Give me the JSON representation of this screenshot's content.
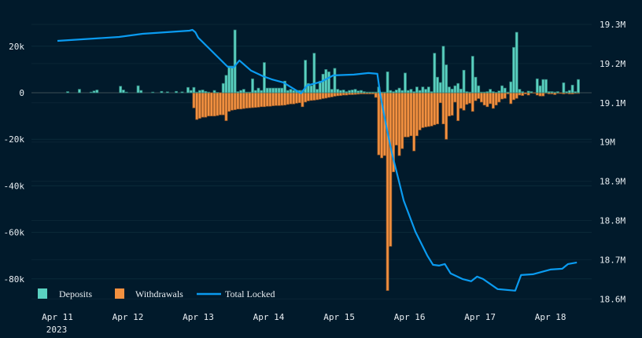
{
  "chart_data": {
    "type": "bar+line",
    "title": "",
    "x_ticks": [
      "Apr 11",
      "Apr 12",
      "Apr 13",
      "Apr 14",
      "Apr 15",
      "Apr 16",
      "Apr 17",
      "Apr 18"
    ],
    "x_year_label": "2023",
    "x_range": [
      "2023-04-11 00:00",
      "2023-04-18 09:00"
    ],
    "bar_interval": "1h",
    "y_left": {
      "ticks": [
        "20k",
        "0",
        "-20k",
        "-40k",
        "-60k",
        "-80k"
      ],
      "tick_values": [
        20000,
        0,
        -20000,
        -40000,
        -60000,
        -80000
      ],
      "range": [
        -88000,
        32000
      ]
    },
    "y_right": {
      "ticks": [
        "19.3M",
        "19.2M",
        "19.1M",
        "19M",
        "18.9M",
        "18.8M",
        "18.7M",
        "18.6M"
      ],
      "tick_values": [
        19.3,
        19.2,
        19.1,
        19.0,
        18.9,
        18.8,
        18.7,
        18.6
      ],
      "unit": "M",
      "range": [
        18.6,
        19.3
      ]
    },
    "grid": true,
    "legend_position": "bottom-left",
    "colors": {
      "deposits": "#5ad1c1",
      "withdrawals": "#f39140",
      "total_locked": "#0a9bf0",
      "background": "#011a2b"
    },
    "series": [
      {
        "name": "Deposits",
        "type": "bar",
        "unit": "k",
        "hourly_by_day": {
          "Apr 11": [
            0,
            0,
            0,
            0.5,
            0,
            0,
            0,
            1.5,
            0,
            0,
            0,
            0.3,
            0.8,
            1.2,
            0,
            0,
            0,
            0,
            0,
            0,
            0,
            2.8,
            1.2,
            0.3
          ],
          "Apr 12": [
            0,
            0,
            0,
            3,
            1,
            0,
            0,
            0,
            0.3,
            0,
            0,
            0.6,
            0,
            0.4,
            0,
            0,
            0.6,
            0,
            0.4,
            0,
            2.3,
            1,
            2.3,
            0.3
          ],
          "Apr 13": [
            1,
            1.2,
            0.6,
            0.3,
            0,
            1,
            0.2,
            0,
            4,
            7.5,
            11.5,
            11.5,
            27,
            0.5,
            1,
            1.5,
            0.3,
            0.3,
            6,
            1,
            2,
            1,
            13,
            2
          ],
          "Apr 14": [
            2,
            2,
            2,
            2,
            2,
            5,
            1,
            1.5,
            1,
            1,
            1,
            1,
            14,
            4,
            3,
            17,
            1.5,
            5,
            8,
            10,
            9,
            1.5,
            10.5,
            1.5
          ],
          "Apr 15": [
            1,
            1.2,
            0.5,
            1,
            1.2,
            1.5,
            0.8,
            1,
            0.5,
            0.3,
            0.3,
            0.3,
            0.3,
            2.5,
            0.3,
            0.3,
            9,
            1,
            0.5,
            1.2,
            2,
            1,
            8.5,
            1
          ],
          "Apr 16": [
            1.5,
            0.5,
            2.5,
            1,
            2.5,
            1.5,
            2.5,
            0.5,
            17,
            6.7,
            4.4,
            20,
            12,
            2.5,
            1.6,
            3,
            4,
            1.6,
            9.7,
            0.5,
            0.3,
            15.7,
            6.7,
            3
          ],
          "Apr 17": [
            0.3,
            0.3,
            0.5,
            1.5,
            0.5,
            0.2,
            0.8,
            3,
            2,
            0.3,
            4.7,
            19.5,
            26,
            1.5,
            0.5,
            0,
            0.7,
            0.5,
            0,
            6,
            3,
            5.7,
            5.7,
            0.5
          ],
          "Apr 18": [
            0.5,
            0.3,
            0.5,
            0,
            4.3,
            0.5,
            1,
            3.3,
            0.5,
            5.7
          ]
        }
      },
      {
        "name": "Withdrawals",
        "type": "bar",
        "unit": "k",
        "hourly_by_day": {
          "Apr 11": [
            0,
            0,
            0,
            0,
            0,
            0,
            0,
            0,
            0,
            0,
            0,
            0,
            0,
            0,
            0,
            0,
            0,
            0,
            0,
            0,
            0,
            0,
            0,
            0
          ],
          "Apr 12": [
            0,
            0,
            0,
            0,
            0,
            0,
            0,
            0,
            0,
            0,
            0,
            0,
            0,
            0,
            0,
            0,
            0,
            0,
            0,
            0,
            0,
            0,
            6.5,
            11.5
          ],
          "Apr 13": [
            11,
            10.5,
            10.5,
            10,
            10,
            10,
            9.8,
            9.5,
            9.5,
            12,
            8,
            7.5,
            7.3,
            7,
            7,
            6.8,
            6.6,
            6.5,
            6.4,
            6.3,
            6.2,
            6,
            6,
            5.8
          ],
          "Apr 14": [
            5.8,
            5.6,
            5.5,
            5.5,
            5.4,
            5.3,
            5,
            4.8,
            4.8,
            4.5,
            4.3,
            6,
            4,
            3.5,
            3.3,
            3.2,
            3,
            2.8,
            2.5,
            2.3,
            2,
            1.8,
            1.5,
            1.3
          ],
          "Apr 15": [
            1.2,
            1,
            1,
            0.8,
            0.8,
            0.7,
            0.6,
            0.5,
            0.5,
            0.5,
            0.5,
            0.5,
            2,
            26.7,
            28,
            27,
            85,
            66,
            34,
            22.5,
            27,
            24,
            19,
            19
          ],
          "Apr 16": [
            18.5,
            25,
            18.5,
            16,
            15,
            14.7,
            14.5,
            14.3,
            13.8,
            13.4,
            4.3,
            13.4,
            20,
            10,
            9.7,
            4,
            12,
            6.7,
            7.5,
            5,
            4.5,
            8,
            3.4,
            2.5
          ],
          "Apr 17": [
            4,
            5.3,
            6,
            4.7,
            6.7,
            5.3,
            4,
            2.7,
            2.4,
            0.5,
            4.7,
            3,
            2.4,
            1,
            1.2,
            0.5,
            1,
            0.2,
            0.2,
            1,
            1.4,
            1.4,
            0.2,
            0.5
          ],
          "Apr 18": [
            0.5,
            0.8,
            0.3,
            0.3,
            0.5,
            0.3,
            0.5,
            0.5,
            0.3,
            0.3
          ]
        }
      },
      {
        "name": "Total Locked",
        "type": "line",
        "unit": "M",
        "points": [
          [
            "2023-04-11 00:00",
            19.258
          ],
          [
            "2023-04-11 21:00",
            19.268
          ],
          [
            "2023-04-12 05:00",
            19.276
          ],
          [
            "2023-04-12 21:00",
            19.284
          ],
          [
            "2023-04-12 22:00",
            19.286
          ],
          [
            "2023-04-12 23:00",
            19.28
          ],
          [
            "2023-04-13 00:00",
            19.266
          ],
          [
            "2023-04-13 10:00",
            19.192
          ],
          [
            "2023-04-13 12:00",
            19.19
          ],
          [
            "2023-04-13 14:00",
            19.208
          ],
          [
            "2023-04-13 18:00",
            19.182
          ],
          [
            "2023-04-13 22:00",
            19.168
          ],
          [
            "2023-04-14 01:00",
            19.16
          ],
          [
            "2023-04-14 05:00",
            19.152
          ],
          [
            "2023-04-14 11:00",
            19.124
          ],
          [
            "2023-04-14 13:00",
            19.144
          ],
          [
            "2023-04-14 18:00",
            19.154
          ],
          [
            "2023-04-14 22:00",
            19.17
          ],
          [
            "2023-04-15 05:00",
            19.172
          ],
          [
            "2023-04-15 10:00",
            19.176
          ],
          [
            "2023-04-15 13:00",
            19.174
          ],
          [
            "2023-04-15 14:00",
            19.122
          ],
          [
            "2023-04-15 16:00",
            19.042
          ],
          [
            "2023-04-15 18:00",
            18.971
          ],
          [
            "2023-04-15 20:00",
            18.911
          ],
          [
            "2023-04-15 22:00",
            18.851
          ],
          [
            "2023-04-16 02:00",
            18.771
          ],
          [
            "2023-04-16 06:00",
            18.711
          ],
          [
            "2023-04-16 08:00",
            18.687
          ],
          [
            "2023-04-16 10:00",
            18.685
          ],
          [
            "2023-04-16 12:00",
            18.689
          ],
          [
            "2023-04-16 14:00",
            18.665
          ],
          [
            "2023-04-16 18:00",
            18.651
          ],
          [
            "2023-04-16 21:00",
            18.645
          ],
          [
            "2023-04-16 23:00",
            18.657
          ],
          [
            "2023-04-17 01:00",
            18.651
          ],
          [
            "2023-04-17 06:00",
            18.625
          ],
          [
            "2023-04-17 12:00",
            18.621
          ],
          [
            "2023-04-17 14:00",
            18.661
          ],
          [
            "2023-04-17 18:00",
            18.663
          ],
          [
            "2023-04-18 00:00",
            18.675
          ],
          [
            "2023-04-18 04:00",
            18.677
          ],
          [
            "2023-04-18 06:00",
            18.689
          ],
          [
            "2023-04-18 09:00",
            18.693
          ]
        ]
      }
    ]
  }
}
